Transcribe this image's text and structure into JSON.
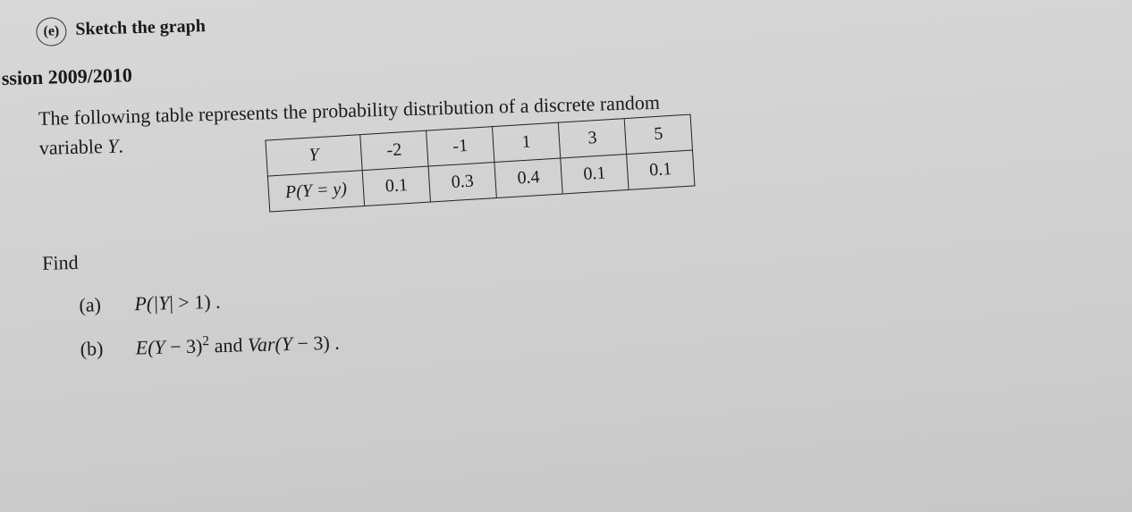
{
  "header": {
    "part_marker": "(e)",
    "cutoff_text": "Sketch the graph",
    "session": "ssion 2009/2010"
  },
  "intro": {
    "line1_a": "The following table represents the probability distribution of a discrete random",
    "line2": "variable",
    "line2_var": "Y",
    "line2_punct": "."
  },
  "table": {
    "row_labels": [
      "Y",
      "P(Y = y)"
    ],
    "values": [
      "-2",
      "-1",
      "1",
      "3",
      "5"
    ],
    "probs": [
      "0.1",
      "0.3",
      "0.4",
      "0.1",
      "0.1"
    ]
  },
  "find_label": "Find",
  "parts": {
    "a_label": "(a)",
    "a_expr_prefix": "P(|",
    "a_expr_var": "Y",
    "a_expr_suffix": "| > 1) .",
    "b_label": "(b)",
    "b_expr_e_open": "E(",
    "b_expr_var1": "Y",
    "b_expr_minus3": " − 3)",
    "b_expr_sq": "2",
    "b_and": "  and  ",
    "b_expr_var_open": "Var(",
    "b_expr_var2": "Y",
    "b_expr_close": " − 3) ."
  },
  "style": {
    "border_color": "#222222",
    "text_color": "#1a1a1a"
  }
}
